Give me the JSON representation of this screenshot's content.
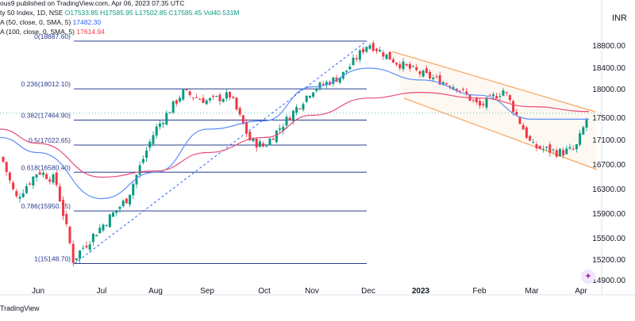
{
  "header": {
    "publisher": "ous9 published on TradingView.com, Apr 06, 2023 07:35 UTC",
    "symbol": "ty 50 Index, 1D, NSE",
    "ohlc": "O17533.85 H17585.95 L17502.85 C17585.45 Vol40.531M",
    "ma50": "A (50, close, 0, SMA, 5)",
    "ma50_value": "17482.30",
    "ma100": "A (100, close, 0, SMA, 5)",
    "ma100_value": "17614.94"
  },
  "currency": "INR",
  "brand": "TradingView",
  "y_axis_labels": [
    "18800.00",
    "18400.00",
    "18000.00",
    "17500.00",
    "17100.00",
    "16700.00",
    "16300.00",
    "15900.00",
    "15500.00",
    "15200.00",
    "14900.00"
  ],
  "x_axis_labels": [
    "Jun",
    "Jul",
    "Aug",
    "Sep",
    "Oct",
    "Nov",
    "Dec",
    "2023",
    "Feb",
    "Mar",
    "Apr"
  ],
  "fib_levels": [
    {
      "label": "0(18887.60)",
      "price": 18887.6
    },
    {
      "label": "0.236(18012.10)",
      "price": 18012.1
    },
    {
      "label": "0.382(17464.90)",
      "price": 17464.9
    },
    {
      "label": "0.5(17022.65)",
      "price": 17022.65
    },
    {
      "label": "0.618(16580.40)",
      "price": 16580.4
    },
    {
      "label": "0.786(15950.75)",
      "price": 15950.75
    },
    {
      "label": "1(15148.70)",
      "price": 15148.7
    }
  ],
  "colors": {
    "up": "#089981",
    "down": "#f23645",
    "ma50": "#5b8ff9",
    "ma100": "#e54b7a",
    "fib": "#2b3b8f",
    "channel": "#f7a55e",
    "trend": "#2962ff"
  },
  "chart_data": {
    "type": "line",
    "title": "",
    "price_scale": "INR",
    "ylim": [
      14800,
      19100
    ],
    "series": [
      {
        "name": "",
        "x": [
          "Jun",
          "Jul",
          "Aug",
          "Sep",
          "Oct",
          "Nov",
          "Dec",
          "2023",
          "Feb",
          "Mar",
          "Apr"
        ],
        "values": [
          16600,
          15700,
          17300,
          17800,
          17000,
          18000,
          18850,
          18300,
          17700,
          17000,
          17585
        ]
      },
      {
        "name": "A (50, close, 0, SMA, 5)",
        "x": [
          "Jun",
          "Jul",
          "Aug",
          "Sep",
          "Oct",
          "Nov",
          "Dec",
          "2023",
          "Feb",
          "Mar",
          "Apr"
        ],
        "values": [
          16900,
          16150,
          16580,
          17300,
          17450,
          18050,
          18400,
          18180,
          17900,
          17480,
          17480
        ]
      },
      {
        "name": "A (100, close, 0, SMA, 5)",
        "x": [
          "Jun",
          "Jul",
          "Aug",
          "Sep",
          "Oct",
          "Nov",
          "Dec",
          "2023",
          "Feb",
          "Mar",
          "Apr"
        ],
        "values": [
          17050,
          16500,
          16600,
          16900,
          17150,
          17550,
          17850,
          17950,
          17850,
          17700,
          17615
        ]
      }
    ],
    "last_close": 17585.45,
    "grid": false,
    "legend": "top-left"
  }
}
